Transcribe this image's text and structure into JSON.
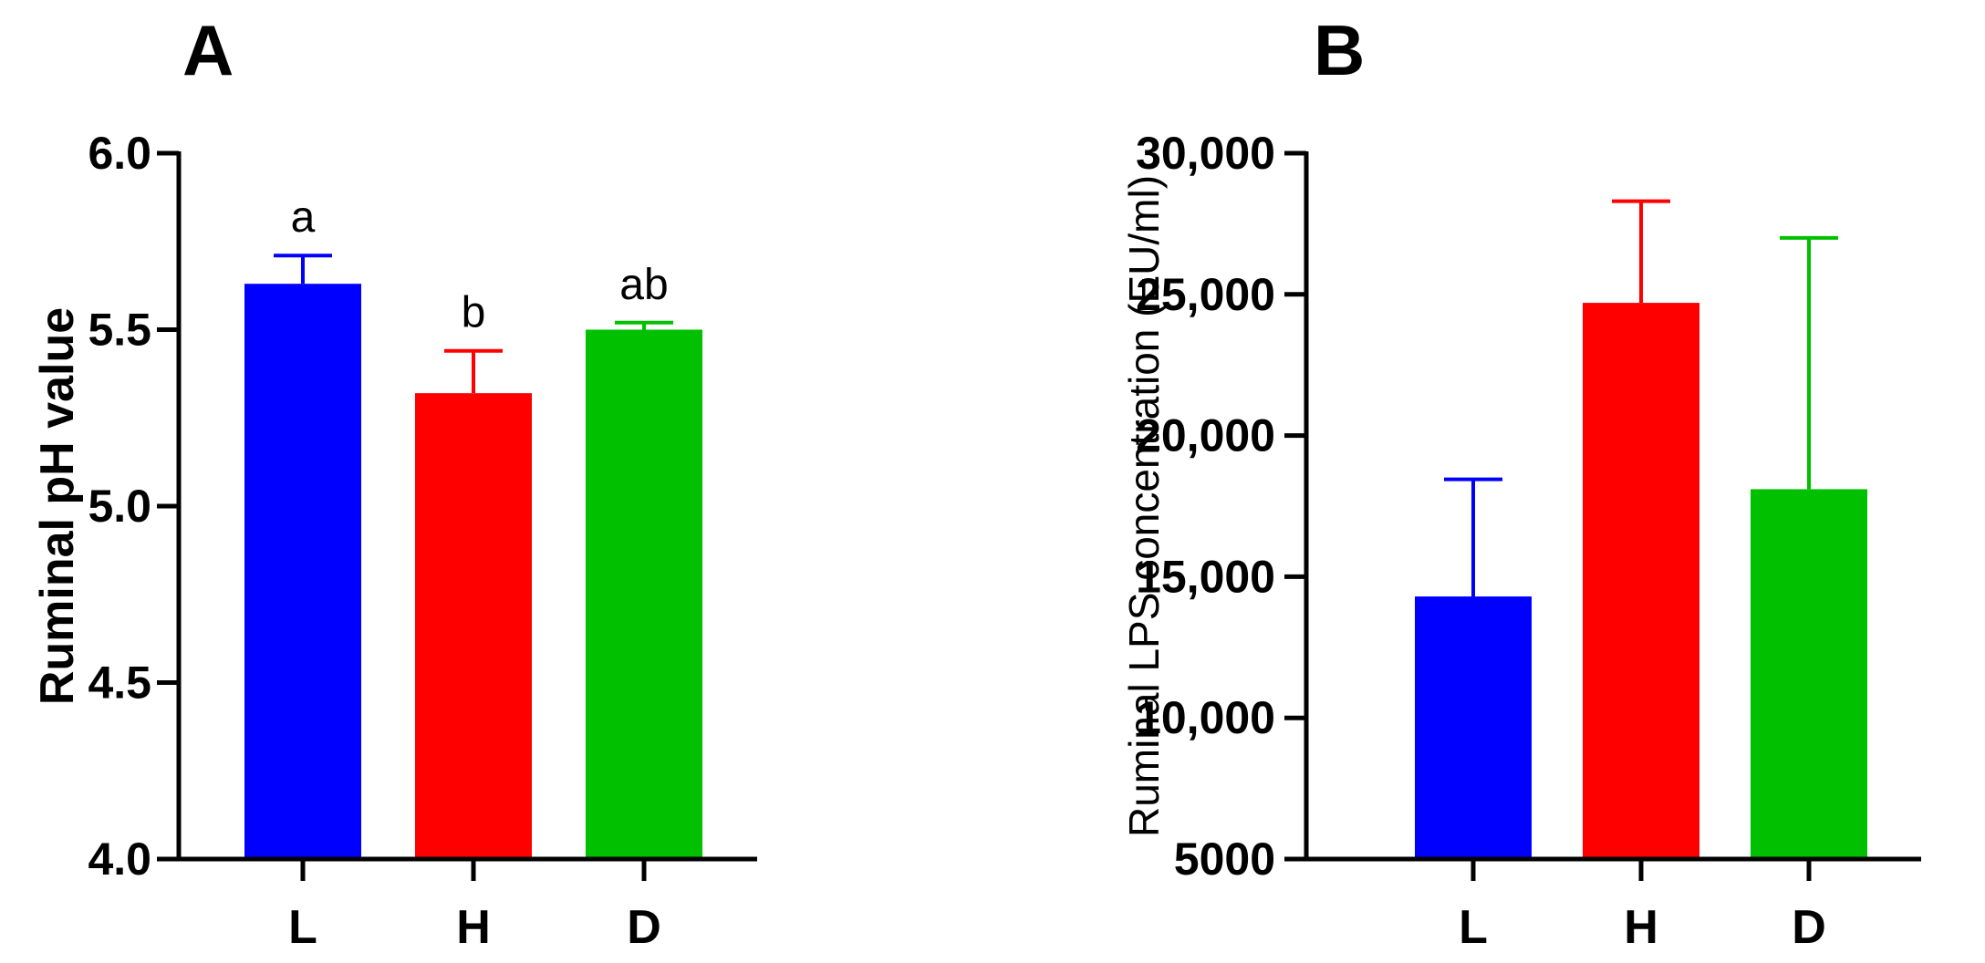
{
  "chart_data": [
    {
      "type": "bar",
      "panel_label": "A",
      "categories": [
        "L",
        "H",
        "D"
      ],
      "values": [
        5.63,
        5.32,
        5.5
      ],
      "error_upper": [
        5.71,
        5.44,
        5.52
      ],
      "sig_letters": [
        "a",
        "b",
        "ab"
      ],
      "colors": [
        "#0000ff",
        "#ff0000",
        "#00c000"
      ],
      "ylabel": "Ruminal pH value",
      "ylim": [
        4.0,
        6.0
      ],
      "ytick_values": [
        4.0,
        4.5,
        5.0,
        5.5,
        6.0
      ],
      "ytick_labels": [
        "4.0",
        "4.5",
        "5.0",
        "5.5",
        "6.0"
      ],
      "grid": false,
      "legend": "none"
    },
    {
      "type": "bar",
      "panel_label": "B",
      "categories": [
        "L",
        "H",
        "D"
      ],
      "values": [
        14300,
        24700,
        18100
      ],
      "error_upper": [
        18450,
        28300,
        27000
      ],
      "colors": [
        "#0000ff",
        "#ff0000",
        "#00c000"
      ],
      "ylabel": "Ruminal LPS concentration (EU/ml)",
      "ylim": [
        5000,
        30000
      ],
      "ytick_values": [
        5000,
        10000,
        15000,
        20000,
        25000,
        30000
      ],
      "ytick_labels": [
        "5000",
        "10,000",
        "15,000",
        "20,000",
        "25,000",
        "30,000"
      ],
      "grid": false,
      "legend": "none"
    }
  ]
}
